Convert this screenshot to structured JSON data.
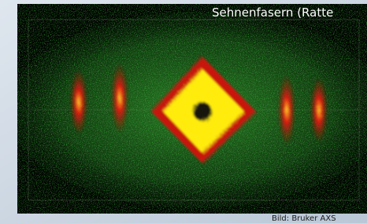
{
  "image": {
    "title": "Sehnenfasern (Ratte",
    "credit": "Bild: Bruker AXS"
  }
}
